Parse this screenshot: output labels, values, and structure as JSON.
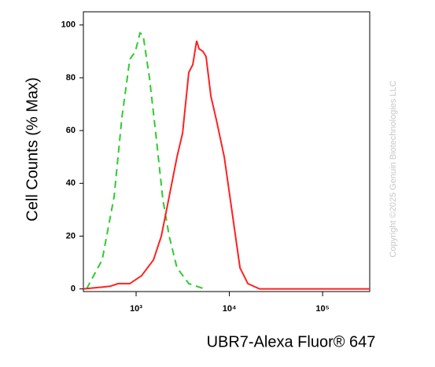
{
  "chart_data": {
    "type": "line",
    "xlabel": "UBR7-Alexa Fluor® 647",
    "ylabel": "Cell Counts (% Max)",
    "watermark": "Copyright ©2025 Genuin Biotechnologies LLC",
    "xscale": "log",
    "xlim": [
      272,
      320000
    ],
    "ylim": [
      -1,
      105
    ],
    "xticks": [
      {
        "value": 1000,
        "label": "10³"
      },
      {
        "value": 10000,
        "label": "10⁴"
      },
      {
        "value": 100000,
        "label": "10⁵"
      }
    ],
    "yticks": [
      0,
      20,
      40,
      60,
      80,
      100
    ],
    "series": [
      {
        "color": "#2ecc2e",
        "linestyle": "dashed",
        "x": [
          294,
          433,
          581,
          705,
          855,
          982,
          1102,
          1191,
          1391,
          1625,
          1936,
          2262,
          2746,
          3675,
          5418
        ],
        "values": [
          0,
          11,
          35,
          65,
          87,
          90,
          97,
          96,
          80,
          59,
          34,
          20,
          8,
          2,
          0
        ]
      },
      {
        "color": "#ff2020",
        "linestyle": "solid",
        "x": [
          272,
          527,
          640,
          855,
          1146,
          1534,
          1864,
          2262,
          2746,
          3148,
          3675,
          4052,
          4463,
          4730,
          5212,
          5633,
          6335,
          7256,
          8810,
          10700,
          13000,
          15800,
          21100,
          320000
        ],
        "values": [
          0,
          1,
          2,
          2,
          5,
          11,
          20,
          35,
          50,
          59,
          82,
          85,
          94,
          91,
          90,
          88,
          73,
          64,
          50,
          29,
          8,
          2,
          0,
          0
        ]
      }
    ]
  }
}
